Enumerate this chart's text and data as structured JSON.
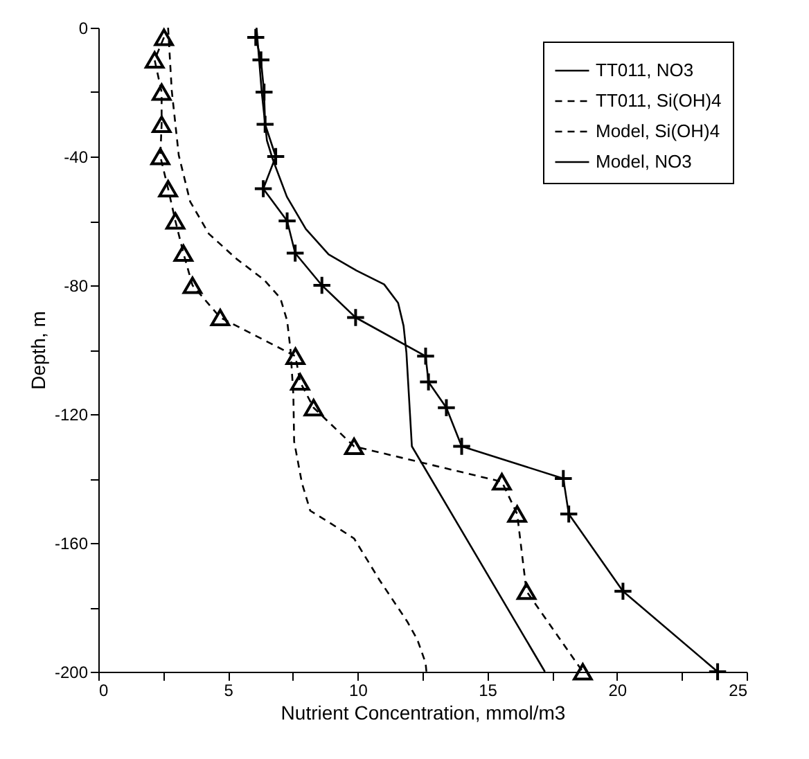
{
  "chart_data": {
    "type": "line",
    "xlabel": "Nutrient Concentration, mmol/m3",
    "ylabel": "Depth, m",
    "xlim": [
      0,
      25
    ],
    "ylim": [
      -200,
      0
    ],
    "xticks": [
      0,
      {
        "value": 2.5,
        "label": null
      },
      5,
      {
        "value": 7.5,
        "label": null
      },
      10,
      {
        "value": 12.5,
        "label": null
      },
      15,
      {
        "value": 17.5,
        "label": null
      },
      20,
      {
        "value": 22.5,
        "label": null
      },
      25
    ],
    "yticks": [
      0,
      {
        "value": -20,
        "label": null
      },
      -40,
      {
        "value": -60,
        "label": null
      },
      -80,
      {
        "value": -100,
        "label": null
      },
      -120,
      {
        "value": -140,
        "label": null
      },
      -160,
      {
        "value": -180,
        "label": null
      },
      -200
    ],
    "grid": false,
    "legend": "top right",
    "series": [
      {
        "name": "TT011, NO3",
        "color": "#000000",
        "marker": "cross",
        "line_style": "solid",
        "x": [
          6.07,
          6.27,
          6.39,
          6.43,
          6.84,
          6.36,
          7.28,
          7.59,
          8.62,
          9.92,
          12.62,
          12.73,
          13.42,
          14.01,
          17.93,
          18.14,
          20.23,
          23.88
        ],
        "values": [
          -3,
          -10,
          -20,
          -30,
          -40,
          -50,
          -60,
          -70,
          -80,
          -90,
          -102,
          -110,
          -118,
          -130,
          -140,
          -151,
          -175,
          -200
        ]
      },
      {
        "name": "TT011, Si(OH)4",
        "color": "#000000",
        "marker": "triangle",
        "line_style": "dashed",
        "x": [
          2.53,
          2.17,
          2.44,
          2.44,
          2.39,
          2.69,
          2.97,
          3.28,
          3.63,
          4.7,
          7.6,
          7.78,
          8.3,
          9.86,
          15.56,
          16.15,
          16.51,
          18.68
        ],
        "values": [
          -3,
          -10,
          -20,
          -30,
          -40,
          -50,
          -60,
          -70,
          -80,
          -90,
          -102,
          -110,
          -118,
          -130,
          -141,
          -151,
          -175,
          -200
        ]
      },
      {
        "name": "Model, Si(OH)4",
        "color": "#000000",
        "marker": "none",
        "line_style": "dashed",
        "x": [
          2.69,
          2.83,
          3.1,
          3.54,
          4.26,
          5.33,
          6.39,
          7.02,
          7.28,
          7.41,
          7.52,
          7.55,
          7.85,
          8.17,
          8.88,
          9.86,
          10.84,
          11.91,
          12.3,
          12.62,
          12.65
        ],
        "values": [
          0,
          -19.5,
          -39.6,
          -54,
          -64,
          -71.8,
          -78.3,
          -84,
          -91,
          -100,
          -114,
          -128.5,
          -141.4,
          -150,
          -153.5,
          -158.6,
          -171.5,
          -184.4,
          -190,
          -197.3,
          -200
        ]
      },
      {
        "name": "Model, NO3",
        "color": "#000000",
        "marker": "none",
        "line_style": "solid",
        "x": [
          6.1,
          6.3,
          6.5,
          6.73,
          7.27,
          8.0,
          8.88,
          9.95,
          11.02,
          11.56,
          11.77,
          11.88,
          12.09,
          17.22
        ],
        "values": [
          0,
          -20,
          -35,
          -41,
          -52.5,
          -62.5,
          -70.4,
          -75.4,
          -79.7,
          -85.5,
          -92.6,
          -101,
          -130,
          -200
        ]
      }
    ]
  }
}
